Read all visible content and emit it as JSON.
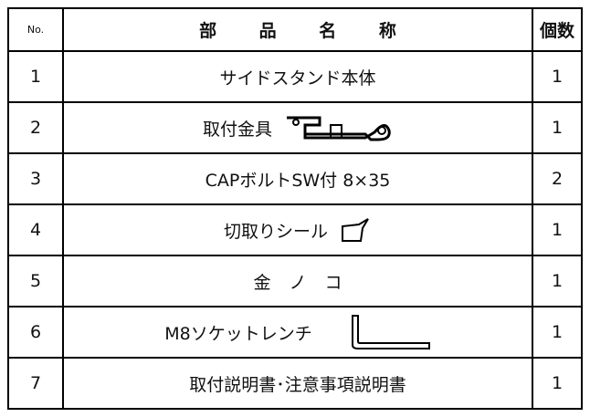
{
  "table": {
    "header": [
      "No.",
      "部 品 名 称",
      "個数"
    ],
    "rows": [
      [
        1,
        "サイドスタンド本体",
        1
      ],
      [
        2,
        "取付金具",
        1
      ],
      [
        3,
        "CAPボルトSW付 8×35",
        2
      ],
      [
        4,
        "切取りシール",
        1
      ],
      [
        5,
        "金 ノ コ",
        1
      ],
      [
        6,
        "M8ソケットレンチ",
        1
      ],
      [
        7,
        "取付説明書･注意事項説明書",
        1
      ]
    ]
  }
}
